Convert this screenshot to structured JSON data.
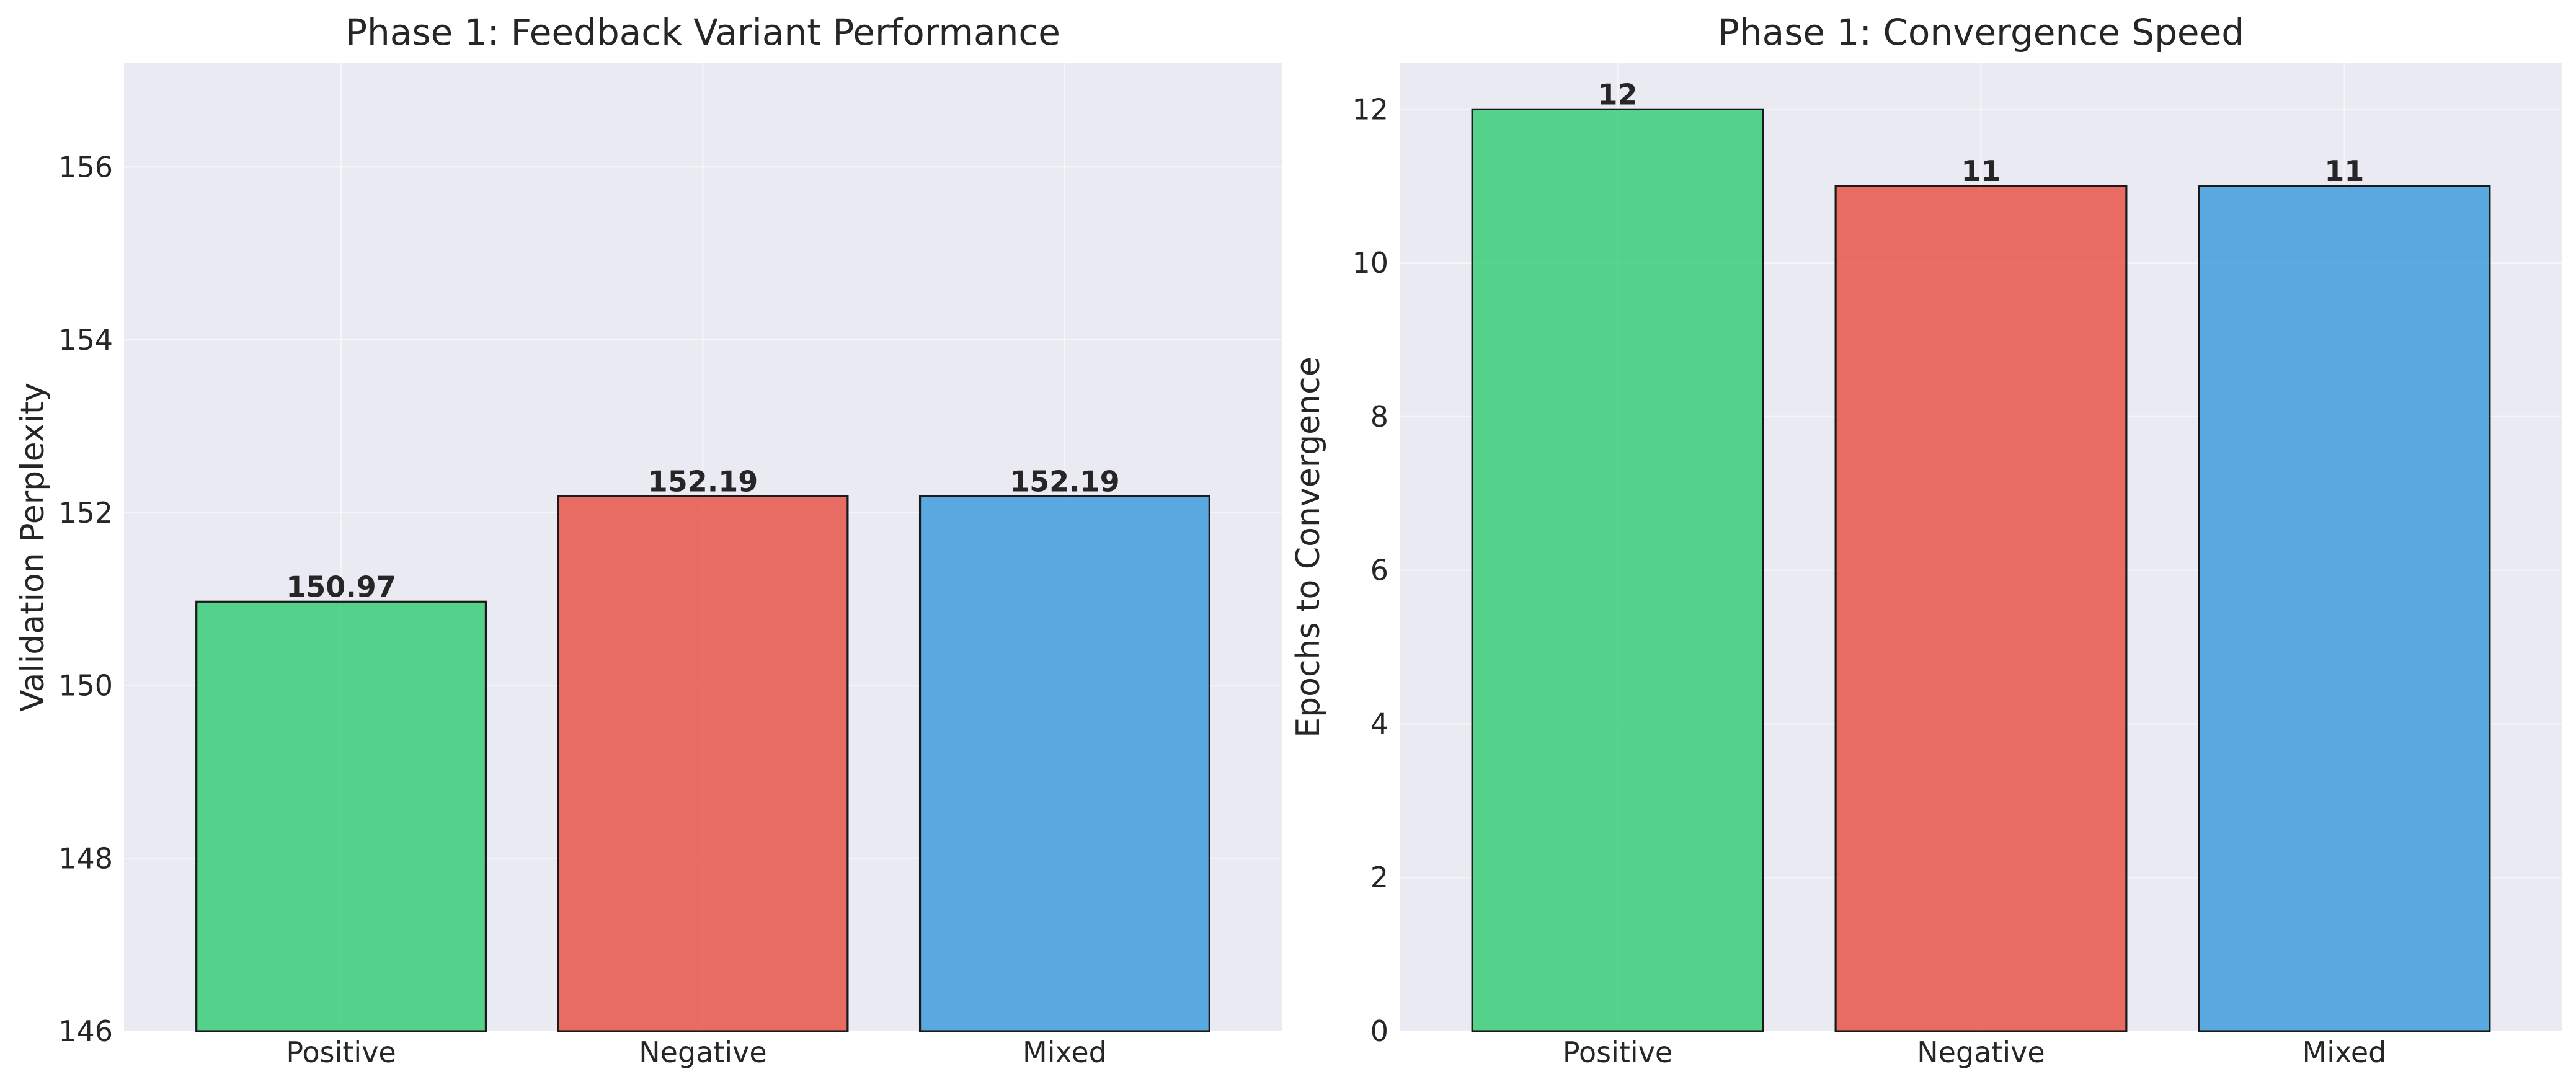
{
  "chart_data": [
    {
      "type": "bar",
      "title": "Phase 1: Feedback Variant Performance",
      "xlabel": "",
      "ylabel": "Validation Perplexity",
      "categories": [
        "Positive",
        "Negative",
        "Mixed"
      ],
      "values": [
        150.97,
        152.19,
        152.19
      ],
      "value_labels": [
        "150.97",
        "152.19",
        "152.19"
      ],
      "colors": [
        "#2ecc71",
        "#e74c3c",
        "#3498db"
      ],
      "ylim": [
        146,
        157.2
      ],
      "yticks": [
        146,
        148,
        150,
        152,
        154,
        156
      ],
      "ytick_labels": [
        "146",
        "148",
        "150",
        "152",
        "154",
        "156"
      ],
      "grid": true,
      "background": "#eaeaf2"
    },
    {
      "type": "bar",
      "title": "Phase 1: Convergence Speed",
      "xlabel": "",
      "ylabel": "Epochs to Convergence",
      "categories": [
        "Positive",
        "Negative",
        "Mixed"
      ],
      "values": [
        12,
        11,
        11
      ],
      "value_labels": [
        "12",
        "11",
        "11"
      ],
      "colors": [
        "#2ecc71",
        "#e74c3c",
        "#3498db"
      ],
      "ylim": [
        0,
        12.6
      ],
      "yticks": [
        0,
        2,
        4,
        6,
        8,
        10,
        12
      ],
      "ytick_labels": [
        "0",
        "2",
        "4",
        "6",
        "8",
        "10",
        "12"
      ],
      "grid": true,
      "background": "#eaeaf2"
    }
  ]
}
